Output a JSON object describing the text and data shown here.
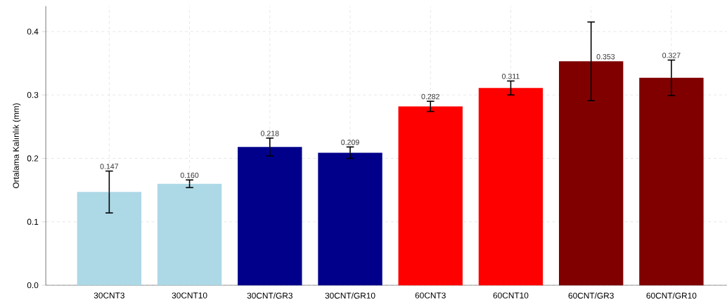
{
  "chart_data": {
    "type": "bar",
    "ylabel": "Ortalama Kalınlık (mm)",
    "categories": [
      "30CNT3",
      "30CNT10",
      "30CNT/GR3",
      "30CNT/GR10",
      "60CNT3",
      "60CNT10",
      "60CNT/GR3",
      "60CNT/GR10"
    ],
    "values": [
      0.147,
      0.16,
      0.218,
      0.209,
      0.282,
      0.311,
      0.353,
      0.327
    ],
    "value_labels": [
      "0.147",
      "0.160",
      "0.218",
      "0.209",
      "0.282",
      "0.311",
      "0.353",
      "0.327"
    ],
    "errors": [
      0.033,
      0.006,
      0.014,
      0.009,
      0.008,
      0.011,
      0.062,
      0.028
    ],
    "colors": [
      "#add8e6",
      "#add8e6",
      "#00008b",
      "#00008b",
      "#ff0000",
      "#ff0000",
      "#800000",
      "#800000"
    ],
    "ylim": [
      0,
      0.44
    ],
    "yticks": [
      {
        "value": 0,
        "label": "0.0"
      },
      0.1,
      0.2,
      0.3,
      0.4
    ],
    "grid": true
  }
}
